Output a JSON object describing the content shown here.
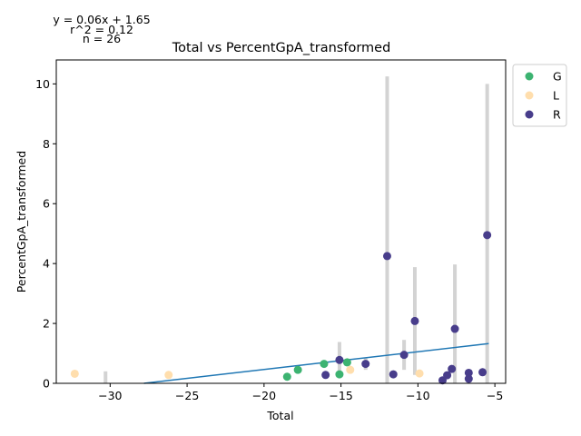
{
  "chart_data": {
    "type": "scatter",
    "title": "Total vs PercentGpA_transformed",
    "xlabel": "Total",
    "ylabel": "PercentGpA_transformed",
    "xlim": [
      -33.5,
      -4.3
    ],
    "ylim": [
      0,
      10.8
    ],
    "xticks": [
      -30,
      -25,
      -20,
      -15,
      -10,
      -5
    ],
    "xtick_labels": [
      "−30",
      "−25",
      "−20",
      "−15",
      "−10",
      "−5"
    ],
    "yticks": [
      0,
      2,
      4,
      6,
      8,
      10
    ],
    "ytick_labels": [
      "0",
      "2",
      "4",
      "6",
      "8",
      "10"
    ],
    "grid": false,
    "legend_position": "outside-top-right",
    "stats": {
      "equation": "y = 0.06x + 1.65",
      "r2": "r^2 = 0.12",
      "n": "n = 26"
    },
    "regression": {
      "slope": 0.06,
      "intercept": 1.65,
      "x_range": [
        -27.8,
        -5.4
      ],
      "color": "#1f77b4"
    },
    "series": [
      {
        "name": "G",
        "color": "#3cb371",
        "points": [
          {
            "x": -18.5,
            "y": 0.22,
            "err": 0.05
          },
          {
            "x": -17.8,
            "y": 0.45,
            "err": 0.1
          },
          {
            "x": -16.1,
            "y": 0.65,
            "err": 0.08
          },
          {
            "x": -15.1,
            "y": 0.3,
            "err": 0.05
          },
          {
            "x": -14.6,
            "y": 0.7,
            "err": 0.1
          }
        ]
      },
      {
        "name": "L",
        "color": "#ffdead",
        "points": [
          {
            "x": -32.3,
            "y": 0.32,
            "err": 0.05
          },
          {
            "x": -26.2,
            "y": 0.28,
            "err": 0.12
          },
          {
            "x": -14.4,
            "y": 0.45,
            "err": 0.1
          },
          {
            "x": -9.9,
            "y": 0.33,
            "err": 0.08
          }
        ]
      },
      {
        "name": "R",
        "color": "#483d8b",
        "points": [
          {
            "x": -16.0,
            "y": 0.28,
            "err": 0.05
          },
          {
            "x": -15.1,
            "y": 0.78,
            "err": 0.6
          },
          {
            "x": -13.4,
            "y": 0.65,
            "err": 0.2
          },
          {
            "x": -12.0,
            "y": 4.25,
            "err": 6.0
          },
          {
            "x": -11.6,
            "y": 0.3,
            "err": 0.05
          },
          {
            "x": -10.9,
            "y": 0.95,
            "err": 0.5
          },
          {
            "x": -10.2,
            "y": 2.08,
            "err": 1.8
          },
          {
            "x": -8.4,
            "y": 0.1,
            "err": 0.05
          },
          {
            "x": -8.1,
            "y": 0.27,
            "err": 0.05
          },
          {
            "x": -7.8,
            "y": 0.48,
            "err": 0.1
          },
          {
            "x": -7.6,
            "y": 1.82,
            "err": 2.15
          },
          {
            "x": -6.7,
            "y": 0.35,
            "err": 0.1
          },
          {
            "x": -6.7,
            "y": 0.15,
            "err": 0.05
          },
          {
            "x": -5.8,
            "y": 0.37,
            "err": 0.05
          },
          {
            "x": -5.5,
            "y": 4.95,
            "err": 5.05
          },
          {
            "x": -12.0,
            "y": 0.05,
            "err": 0.0
          },
          {
            "x": -30.3,
            "y": 0.0,
            "err": 0.4
          }
        ]
      }
    ]
  }
}
